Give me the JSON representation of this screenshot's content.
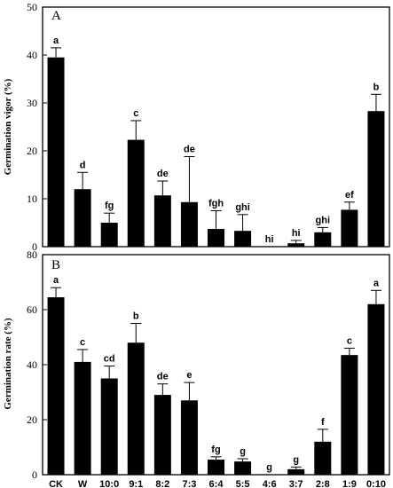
{
  "chart_data": [
    {
      "type": "bar",
      "panel": "A",
      "ylabel": "Germination vigor (%)",
      "ylim": [
        0,
        50
      ],
      "yticks": [
        "0",
        "10",
        "20",
        "30",
        "40",
        "50"
      ],
      "categories": [
        "CK",
        "W",
        "10:0",
        "9:1",
        "8:2",
        "7:3",
        "6:4",
        "5:5",
        "4:6",
        "3:7",
        "2:8",
        "1:9",
        "0:10"
      ],
      "values": [
        39.5,
        12.0,
        5.0,
        22.3,
        10.7,
        9.3,
        3.7,
        3.3,
        0.0,
        0.7,
        3.0,
        7.7,
        28.3
      ],
      "errors": [
        2.0,
        3.5,
        2.0,
        4.0,
        3.0,
        9.5,
        3.8,
        3.4,
        0.0,
        0.6,
        1.0,
        1.6,
        3.5
      ],
      "significance": [
        "a",
        "d",
        "fg",
        "c",
        "de",
        "de",
        "fgh",
        "ghi",
        "hi",
        "hi",
        "ghi",
        "ef",
        "b"
      ],
      "grid": false
    },
    {
      "type": "bar",
      "panel": "B",
      "ylabel": "Germination rate (%)",
      "ylim": [
        0,
        80
      ],
      "yticks": [
        "0",
        "20",
        "40",
        "60",
        "80"
      ],
      "categories": [
        "CK",
        "W",
        "10:0",
        "9:1",
        "8:2",
        "7:3",
        "6:4",
        "5:5",
        "4:6",
        "3:7",
        "2:8",
        "1:9",
        "0:10"
      ],
      "values": [
        64.5,
        41.0,
        35.0,
        48.0,
        29.0,
        27.0,
        5.5,
        4.8,
        0.0,
        2.0,
        12.0,
        43.5,
        62.0
      ],
      "errors": [
        3.5,
        4.5,
        4.5,
        7.0,
        4.0,
        6.5,
        1.0,
        1.0,
        0.0,
        0.8,
        4.5,
        2.5,
        5.0
      ],
      "significance": [
        "a",
        "c",
        "cd",
        "b",
        "de",
        "e",
        "fg",
        "g",
        "g",
        "g",
        "f",
        "c",
        "a"
      ],
      "grid": false
    }
  ]
}
